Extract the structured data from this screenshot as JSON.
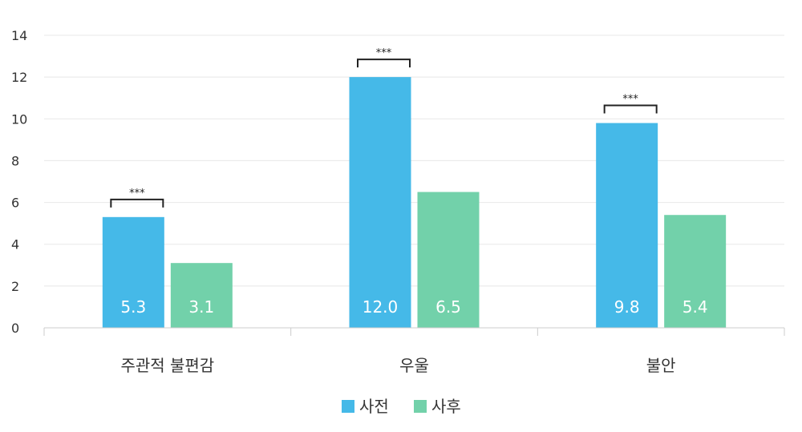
{
  "colors": {
    "before": "#45B9E8",
    "after": "#72D1AA",
    "grid": "#e8e8e8",
    "axis": "#cccccc",
    "bracket": "#222222"
  },
  "chart_data": {
    "type": "bar",
    "categories": [
      "주관적 불편감",
      "우울",
      "불안"
    ],
    "series": [
      {
        "name": "사전",
        "values": [
          5.3,
          12.0,
          9.8
        ],
        "labels": [
          "5.3",
          "12.0",
          "9.8"
        ]
      },
      {
        "name": "사후",
        "values": [
          3.1,
          6.5,
          5.4
        ],
        "labels": [
          "3.1",
          "6.5",
          "5.4"
        ]
      }
    ],
    "significance": [
      "***",
      "***",
      "***"
    ],
    "ylim": [
      0,
      14
    ],
    "yticks": [
      0,
      2,
      4,
      6,
      8,
      10,
      12,
      14
    ],
    "grid": true,
    "legend_position": "bottom-center"
  }
}
